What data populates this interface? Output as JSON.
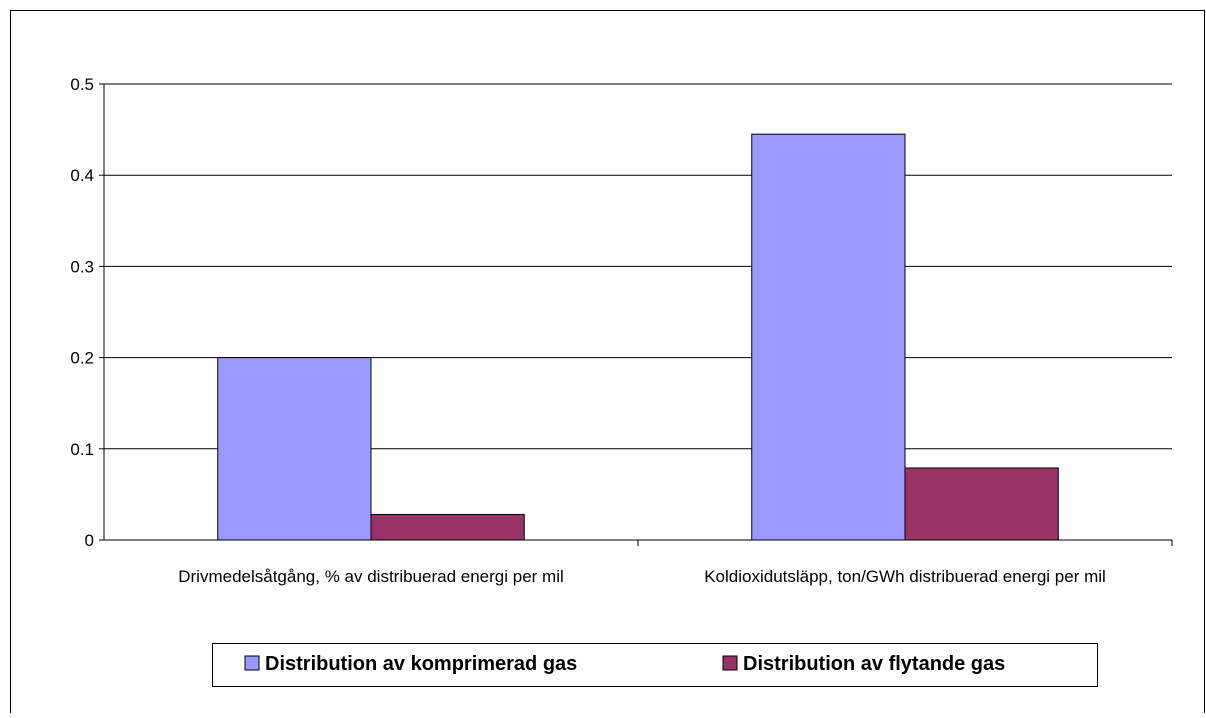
{
  "chart_data": {
    "type": "bar",
    "categories": [
      "Drivmedelsåtgång, % av distribuerad energi per mil",
      "Koldioxidutsläpp, ton/GWh distribuerad energi per mil"
    ],
    "series": [
      {
        "name": "Distribution av komprimerad gas",
        "color": "#9999ff",
        "values": [
          0.2,
          0.445
        ]
      },
      {
        "name": "Distribution av flytande gas",
        "color": "#993366",
        "values": [
          0.028,
          0.079
        ]
      }
    ],
    "ylim": [
      0,
      0.5
    ],
    "yticks": [
      0,
      0.1,
      0.2,
      0.3,
      0.4,
      0.5
    ],
    "grid": true,
    "legend": "bottom"
  }
}
